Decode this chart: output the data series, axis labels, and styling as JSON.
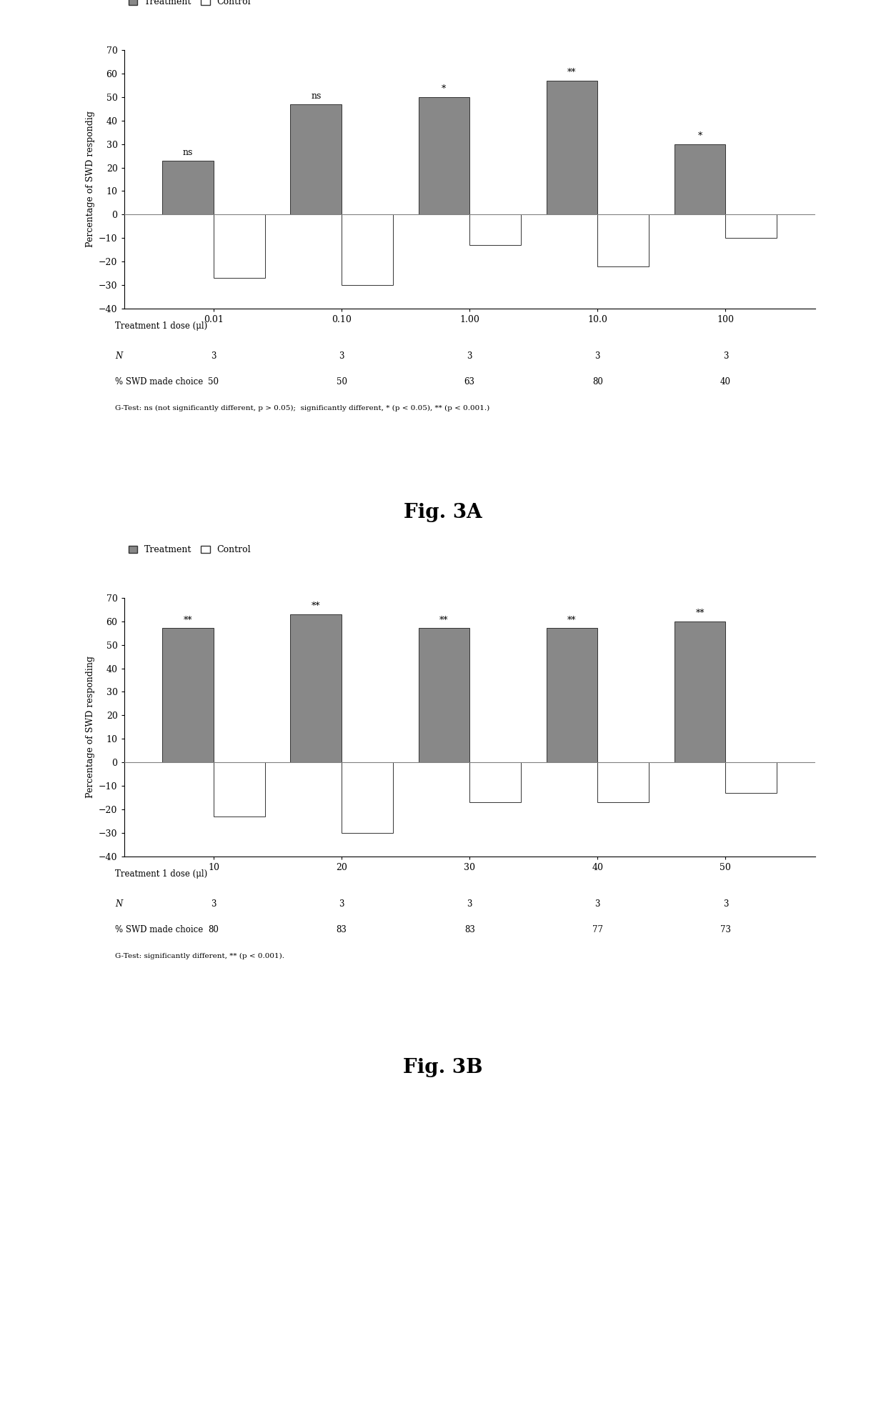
{
  "fig3A": {
    "x_labels": [
      "0.01",
      "0.10",
      "1.00",
      "10.0",
      "100"
    ],
    "treatment_values": [
      23,
      47,
      50,
      57,
      30
    ],
    "control_values": [
      -27,
      -30,
      -13,
      -22,
      -10
    ],
    "significance": [
      "ns",
      "ns",
      "*",
      "**",
      "*"
    ],
    "ylabel": "Percentage of SWD respondig",
    "xlabel": "Treatment 1 dose (μl)",
    "ylim": [
      -40,
      70
    ],
    "yticks": [
      -40,
      -30,
      -20,
      -10,
      0,
      10,
      20,
      30,
      40,
      50,
      60,
      70
    ],
    "N_values": [
      3,
      3,
      3,
      3,
      3
    ],
    "pct_swd": [
      50,
      50,
      63,
      80,
      40
    ],
    "note": "G-Test: ns (not significantly different, p > 0.05);  significantly different, * (p < 0.05), ** (p < 0.001.)",
    "fig_label": "Fig. 3A"
  },
  "fig3B": {
    "x_labels": [
      "10",
      "20",
      "30",
      "40",
      "50"
    ],
    "treatment_values": [
      57,
      63,
      57,
      57,
      60
    ],
    "control_values": [
      -23,
      -30,
      -17,
      -17,
      -13
    ],
    "significance": [
      "**",
      "**",
      "**",
      "**",
      "**"
    ],
    "ylabel": "Percentage of SWD responding",
    "xlabel": "Treatment 1 dose (μl)",
    "ylim": [
      -40,
      70
    ],
    "yticks": [
      -40,
      -30,
      -20,
      -10,
      0,
      10,
      20,
      30,
      40,
      50,
      60,
      70
    ],
    "N_values": [
      3,
      3,
      3,
      3,
      3
    ],
    "pct_swd": [
      80,
      83,
      83,
      77,
      73
    ],
    "note": "G-Test: significantly different, ** (p < 0.001).",
    "fig_label": "Fig. 3B"
  },
  "bar_color_treatment": "#888888",
  "bar_color_control": "#ffffff",
  "bar_edge_color": "#333333",
  "bar_width": 0.4,
  "background_color": "#ffffff",
  "legend_treatment": "Treatment",
  "legend_control": "Control",
  "note_italic_parts_A": [
    "p > 0.05",
    "p < 0.05",
    "p < 0.001"
  ],
  "note_italic_parts_B": [
    "p < 0.001"
  ]
}
